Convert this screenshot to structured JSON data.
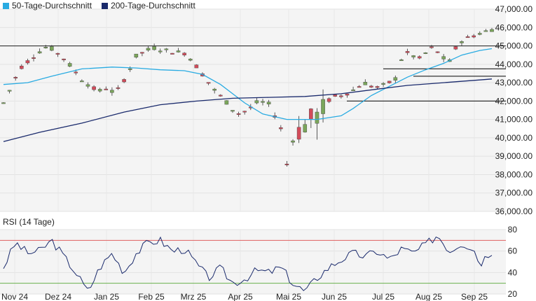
{
  "legend": {
    "sma50_label": "50-Tage-Durchschnitt",
    "sma200_label": "200-Tage-Durchschnitt"
  },
  "rsi_title": "RSI (14 Tage)",
  "colors": {
    "up": "#7aa55a",
    "down": "#d24b5a",
    "sma50": "#29abe2",
    "sma200": "#1a2a6c",
    "rsi": "#1a2a6c",
    "rsi_upper": "#e06060",
    "rsi_lower": "#6ab04c",
    "hline": "#333333",
    "panel_bg": "#f4f4f4"
  },
  "chart_data": [
    {
      "type": "candlestick",
      "x_ticks": [
        "Nov 24",
        "Dez 24",
        "Jan 25",
        "Feb 25",
        "Mrz 25",
        "Apr 25",
        "Mai 25",
        "Jun 25",
        "Jul 25",
        "Aug 25",
        "Sep 25"
      ],
      "y_ticks": [
        36000,
        37000,
        38000,
        39000,
        40000,
        41000,
        42000,
        43000,
        44000,
        45000,
        46000,
        47000
      ],
      "ylim": [
        36000,
        47000
      ],
      "series": [
        {
          "name": "50-Tage-Durchschnitt",
          "points": [
            [
              0,
              42900
            ],
            [
              4,
              43000
            ],
            [
              8,
              43350
            ],
            [
              13,
              43750
            ],
            [
              18,
              43850
            ],
            [
              22,
              43800
            ],
            [
              26,
              43700
            ],
            [
              30,
              43650
            ],
            [
              33,
              43450
            ],
            [
              36,
              42900
            ],
            [
              40,
              41900
            ],
            [
              43,
              41300
            ],
            [
              47,
              41000
            ],
            [
              52,
              41000
            ],
            [
              56,
              41200
            ],
            [
              58,
              41600
            ],
            [
              61,
              42300
            ],
            [
              64,
              42800
            ],
            [
              67,
              43300
            ],
            [
              70,
              43700
            ],
            [
              73,
              44050
            ],
            [
              76,
              44500
            ],
            [
              79,
              44750
            ],
            [
              81,
              44850
            ]
          ]
        },
        {
          "name": "200-Tage-Durchschnitt",
          "points": [
            [
              0,
              39800
            ],
            [
              6,
              40300
            ],
            [
              13,
              40800
            ],
            [
              20,
              41400
            ],
            [
              26,
              41800
            ],
            [
              32,
              42000
            ],
            [
              38,
              42150
            ],
            [
              44,
              42200
            ],
            [
              50,
              42250
            ],
            [
              56,
              42400
            ],
            [
              62,
              42650
            ],
            [
              67,
              42850
            ],
            [
              73,
              43000
            ],
            [
              79,
              43150
            ],
            [
              81,
              43200
            ]
          ]
        }
      ],
      "horizontal_lines": [
        45000,
        43750,
        43350,
        42000
      ],
      "sma50_end": 44850,
      "sma200_end": 43200,
      "candles": []
    },
    {
      "type": "line",
      "title": "RSI (14 Tage)",
      "y_ticks": [
        20,
        40,
        60,
        80
      ],
      "ylim": [
        20,
        80
      ],
      "upper_band": 70,
      "lower_band": 30,
      "values": []
    }
  ]
}
